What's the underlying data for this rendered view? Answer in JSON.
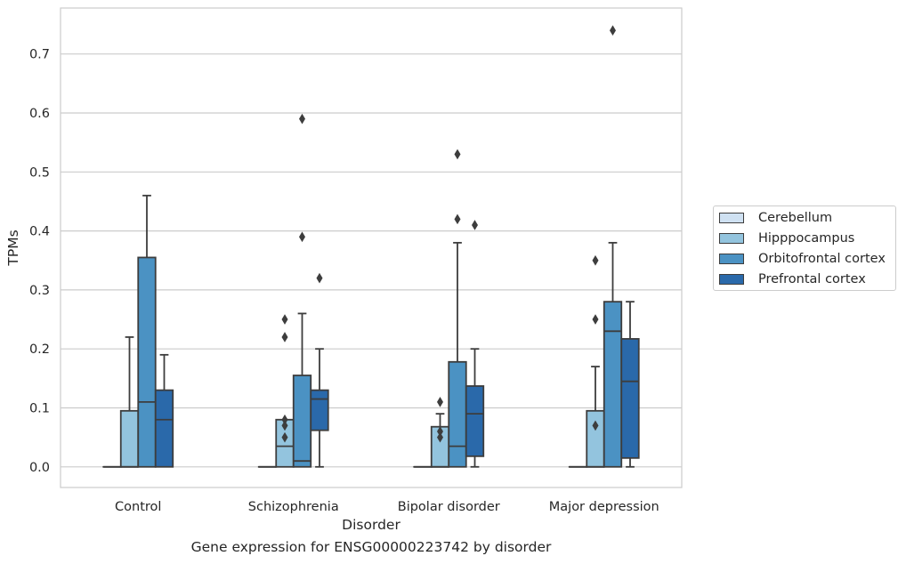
{
  "caption": "Gene expression for ENSG00000223742 by disorder",
  "chart_data": {
    "type": "box",
    "xlabel": "Disorder",
    "ylabel": "TPMs",
    "categories": [
      "Control",
      "Schizophrenia",
      "Bipolar disorder",
      "Major depression"
    ],
    "ylim": [
      -0.035,
      0.778
    ],
    "yticks": [
      0.0,
      0.1,
      0.2,
      0.3,
      0.4,
      0.5,
      0.6,
      0.7
    ],
    "ytick_labels": [
      "0.0",
      "0.1",
      "0.2",
      "0.3",
      "0.4",
      "0.5",
      "0.6",
      "0.7"
    ],
    "grid": "horizontal",
    "legend_position": "outside-right",
    "series": [
      {
        "name": "Cerebellum",
        "color": "#cfe1f2",
        "boxes": [
          {
            "q1": 0,
            "median": 0,
            "q3": 0,
            "whisker_low": 0,
            "whisker_high": 0,
            "outliers": []
          },
          {
            "q1": 0,
            "median": 0,
            "q3": 0,
            "whisker_low": 0,
            "whisker_high": 0,
            "outliers": []
          },
          {
            "q1": 0,
            "median": 0,
            "q3": 0,
            "whisker_low": 0,
            "whisker_high": 0,
            "outliers": []
          },
          {
            "q1": 0,
            "median": 0,
            "q3": 0,
            "whisker_low": 0,
            "whisker_high": 0,
            "outliers": []
          }
        ]
      },
      {
        "name": "Hipppocampus",
        "color": "#93c4de",
        "boxes": [
          {
            "q1": 0,
            "median": 0,
            "q3": 0.095,
            "whisker_low": 0,
            "whisker_high": 0.22,
            "outliers": []
          },
          {
            "q1": 0,
            "median": 0.035,
            "q3": 0.08,
            "whisker_low": 0,
            "whisker_high": 0.08,
            "outliers": [
              0.08,
              0.07,
              0.05,
              0.25,
              0.22
            ]
          },
          {
            "q1": 0,
            "median": 0,
            "q3": 0.068,
            "whisker_low": 0,
            "whisker_high": 0.09,
            "outliers": [
              0.11,
              0.06,
              0.05
            ]
          },
          {
            "q1": 0,
            "median": 0,
            "q3": 0.095,
            "whisker_low": 0,
            "whisker_high": 0.17,
            "outliers": [
              0.07,
              0.35,
              0.25
            ]
          }
        ]
      },
      {
        "name": "Orbitofrontal cortex",
        "color": "#4b92c3",
        "boxes": [
          {
            "q1": 0,
            "median": 0.11,
            "q3": 0.355,
            "whisker_low": 0,
            "whisker_high": 0.46,
            "outliers": []
          },
          {
            "q1": 0,
            "median": 0.01,
            "q3": 0.155,
            "whisker_low": 0,
            "whisker_high": 0.26,
            "outliers": [
              0.59,
              0.39
            ]
          },
          {
            "q1": 0,
            "median": 0.035,
            "q3": 0.178,
            "whisker_low": 0,
            "whisker_high": 0.38,
            "outliers": [
              0.53,
              0.42
            ]
          },
          {
            "q1": 0,
            "median": 0.23,
            "q3": 0.28,
            "whisker_low": 0,
            "whisker_high": 0.38,
            "outliers": [
              0.74
            ]
          }
        ]
      },
      {
        "name": "Prefrontal cortex",
        "color": "#2a69aa",
        "boxes": [
          {
            "q1": 0,
            "median": 0.08,
            "q3": 0.13,
            "whisker_low": 0,
            "whisker_high": 0.19,
            "outliers": []
          },
          {
            "q1": 0.062,
            "median": 0.115,
            "q3": 0.13,
            "whisker_low": 0,
            "whisker_high": 0.2,
            "outliers": [
              0.32
            ]
          },
          {
            "q1": 0.018,
            "median": 0.09,
            "q3": 0.137,
            "whisker_low": 0,
            "whisker_high": 0.2,
            "outliers": [
              0.41
            ]
          },
          {
            "q1": 0.015,
            "median": 0.145,
            "q3": 0.217,
            "whisker_low": 0,
            "whisker_high": 0.28,
            "outliers": []
          }
        ]
      }
    ]
  }
}
